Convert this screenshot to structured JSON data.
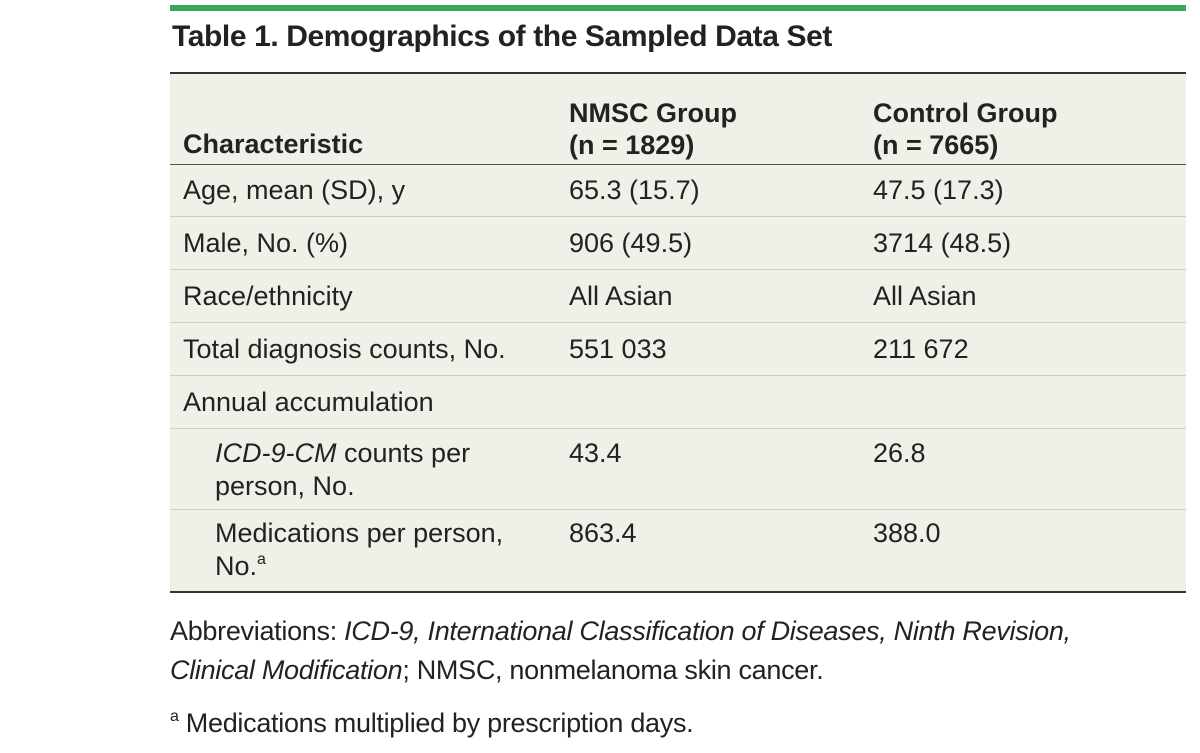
{
  "title": "Table 1. Demographics of the Sampled Data Set",
  "table": {
    "headers": {
      "characteristic": "Characteristic",
      "nmsc_line1": "NMSC Group",
      "nmsc_line2": "(n = 1829)",
      "control_line1": "Control Group",
      "control_line2": "(n = 7665)"
    },
    "rows": [
      {
        "label": "Age, mean (SD), y",
        "nmsc": "65.3 (15.7)",
        "control": "47.5 (17.3)"
      },
      {
        "label": "Male, No. (%)",
        "nmsc": "906 (49.5)",
        "control": "3714 (48.5)"
      },
      {
        "label": "Race/ethnicity",
        "nmsc": "All Asian",
        "control": "All Asian"
      },
      {
        "label": "Total diagnosis counts, No.",
        "nmsc": "551 033",
        "control": "211 672"
      },
      {
        "label": "Annual accumulation",
        "nmsc": "",
        "control": ""
      },
      {
        "label_italic": "ICD-9-CM",
        "label_rest": " counts per",
        "label_line2": "person, No.",
        "nmsc": "43.4",
        "control": "26.8"
      },
      {
        "label_line1": "Medications per person,",
        "label_line2": "No.",
        "label_sup": "a",
        "nmsc": "863.4",
        "control": "388.0"
      }
    ]
  },
  "footnotes": {
    "abbrev_prefix": "Abbreviations: ",
    "abbrev_italic_1": "ICD-9, International Classification of Diseases, Ninth Revision,",
    "abbrev_italic_2": "Clinical Modification",
    "abbrev_rest": "; NMSC, nonmelanoma skin cancer.",
    "note_a_marker": "a",
    "note_a_text": " Medications multiplied by prescription days."
  },
  "colors": {
    "accent_bar": "#3aa756",
    "table_bg": "#f0efe8"
  }
}
